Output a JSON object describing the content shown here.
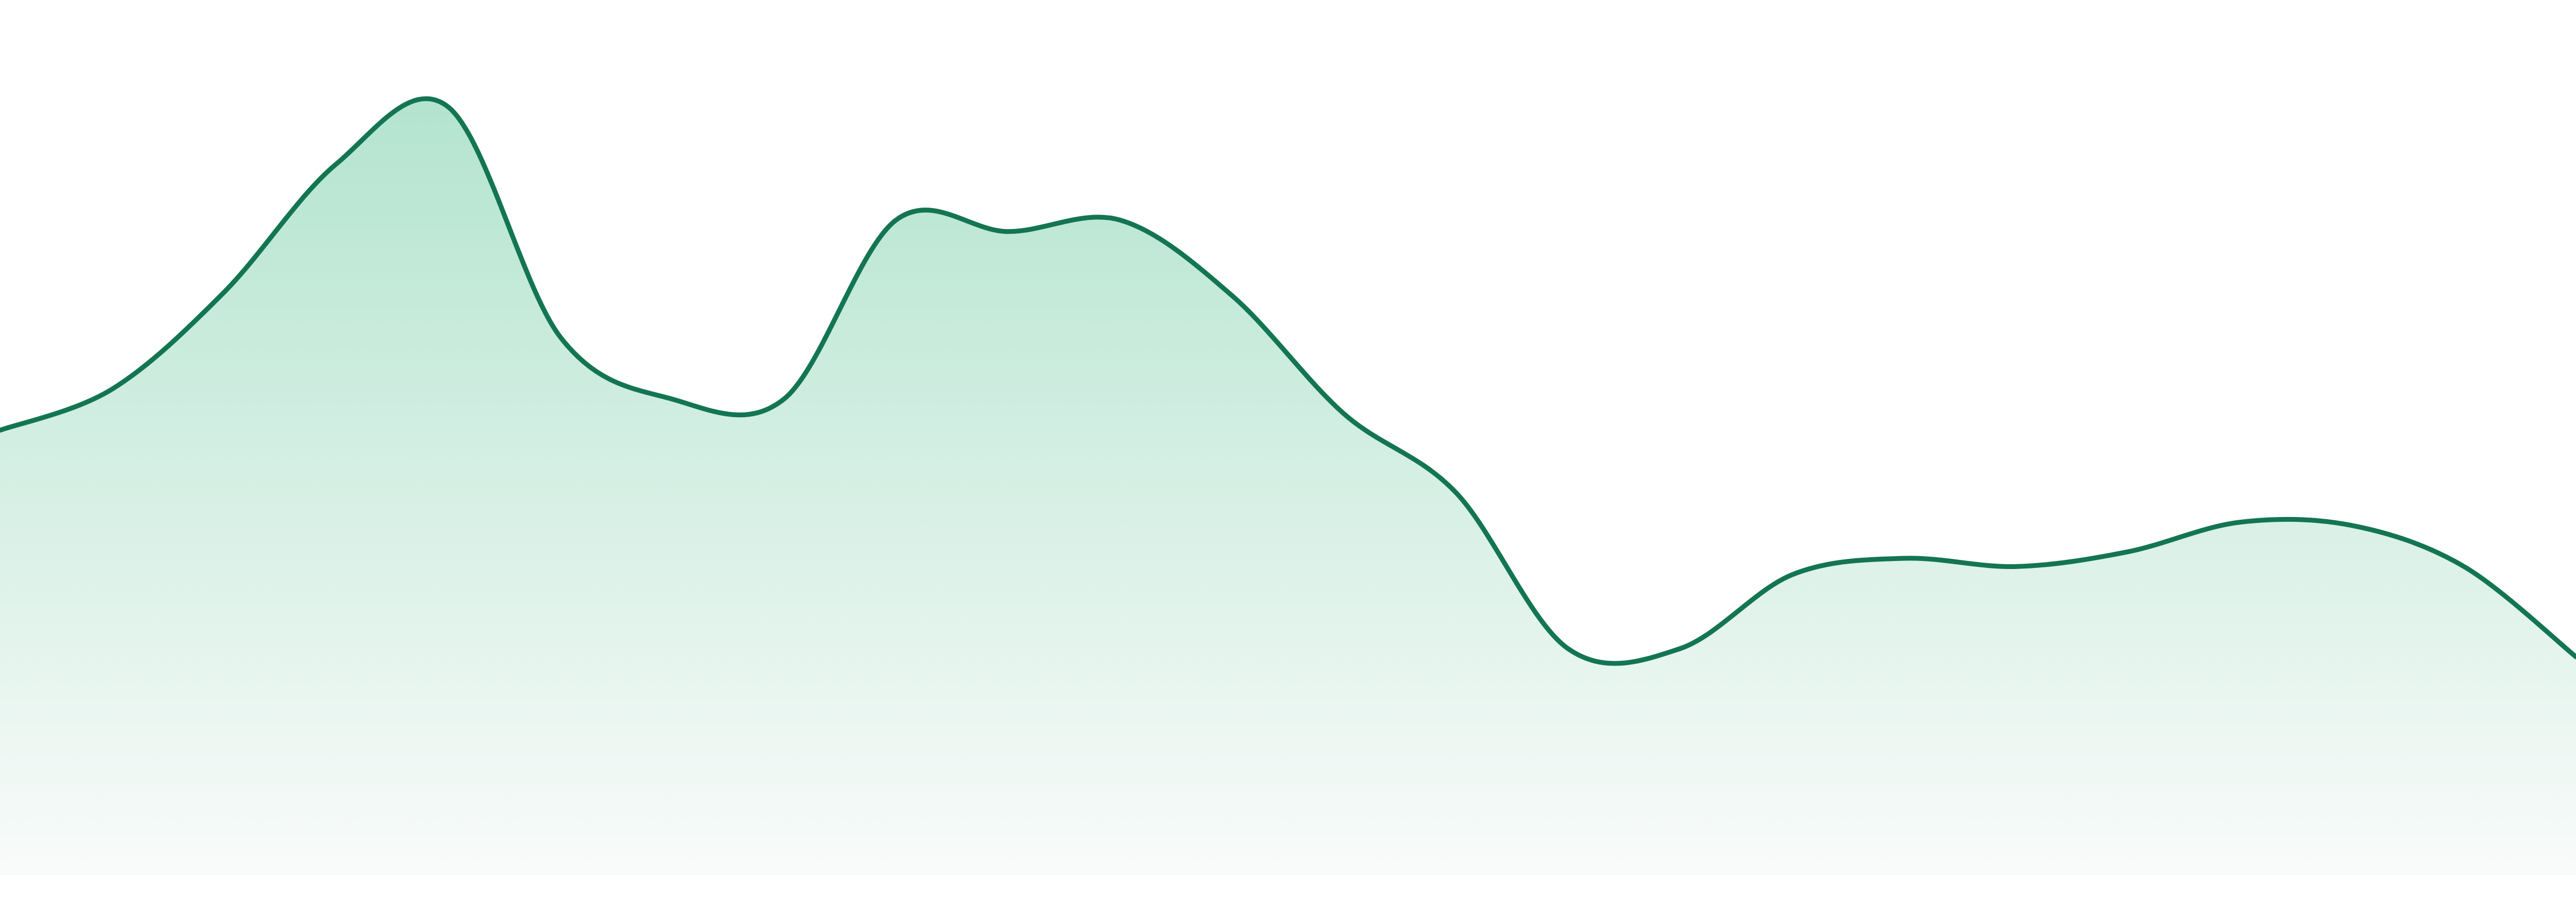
{
  "chart_data": {
    "type": "area",
    "title": "",
    "xlabel": "",
    "ylabel": "",
    "grid": false,
    "legend": "none",
    "axes_visible": false,
    "ylim": [
      0,
      533
    ],
    "x": [
      0,
      1,
      2,
      3,
      4,
      5,
      6,
      7,
      8,
      9,
      10,
      11,
      12,
      13,
      14,
      15,
      16,
      17,
      18,
      19,
      20,
      21,
      22,
      23
    ],
    "values": [
      271,
      296,
      355,
      433,
      468,
      328,
      290,
      290,
      399,
      392,
      399,
      353,
      281,
      233,
      138,
      138,
      183,
      193,
      188,
      197,
      215,
      213,
      188,
      133
    ],
    "colors": {
      "line": "#137552",
      "fill_top": "#b3e4cf",
      "fill_bottom": "#f9fbfa"
    }
  }
}
